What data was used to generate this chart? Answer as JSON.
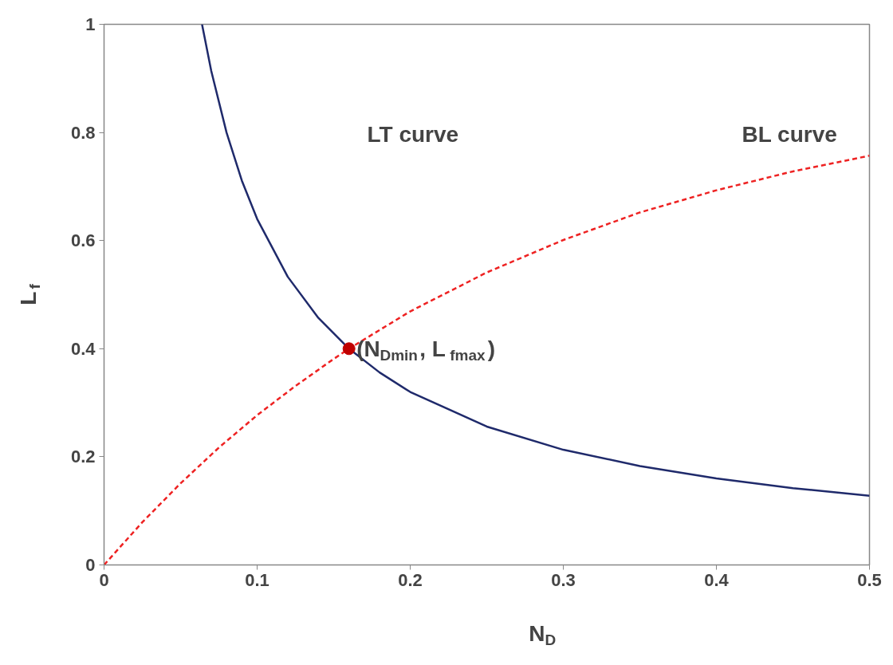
{
  "chart_data": {
    "type": "line",
    "xlabel": "N$_{D}$",
    "ylabel": "L$_{f}$",
    "xlim": [
      0,
      0.5
    ],
    "ylim": [
      0,
      1
    ],
    "xticks": [
      0,
      0.1,
      0.2,
      0.3,
      0.4,
      0.5
    ],
    "yticks": [
      0,
      0.2,
      0.4,
      0.6,
      0.8,
      1
    ],
    "grid": false,
    "series": [
      {
        "line_style": "solid",
        "color": "#1f2a6b",
        "x": [
          0.064,
          0.07,
          0.08,
          0.09,
          0.1,
          0.12,
          0.14,
          0.16,
          0.18,
          0.2,
          0.25,
          0.3,
          0.35,
          0.4,
          0.45,
          0.5
        ],
        "values": [
          1.0,
          0.914,
          0.8,
          0.711,
          0.64,
          0.533,
          0.457,
          0.4,
          0.356,
          0.32,
          0.256,
          0.213,
          0.183,
          0.16,
          0.142,
          0.128
        ]
      },
      {
        "line_style": "dashed",
        "color": "#ee2222",
        "x": [
          0,
          0.025,
          0.05,
          0.075,
          0.1,
          0.125,
          0.15,
          0.16,
          0.2,
          0.25,
          0.3,
          0.35,
          0.4,
          0.45,
          0.5
        ],
        "values": [
          0,
          0.079,
          0.151,
          0.217,
          0.277,
          0.331,
          0.381,
          0.4,
          0.469,
          0.541,
          0.601,
          0.652,
          0.693,
          0.728,
          0.757
        ]
      },
      {
        "type": "scatter",
        "marker": "circle",
        "color": "#c00000",
        "x": [
          0.16
        ],
        "values": [
          0.4
        ]
      }
    ],
    "annotations": [
      "LT curve",
      "BL curve",
      {
        "text": "(N$_{Dmin}$, L$_{fmax}$)",
        "x": 0.165,
        "y": 0.4
      }
    ]
  }
}
